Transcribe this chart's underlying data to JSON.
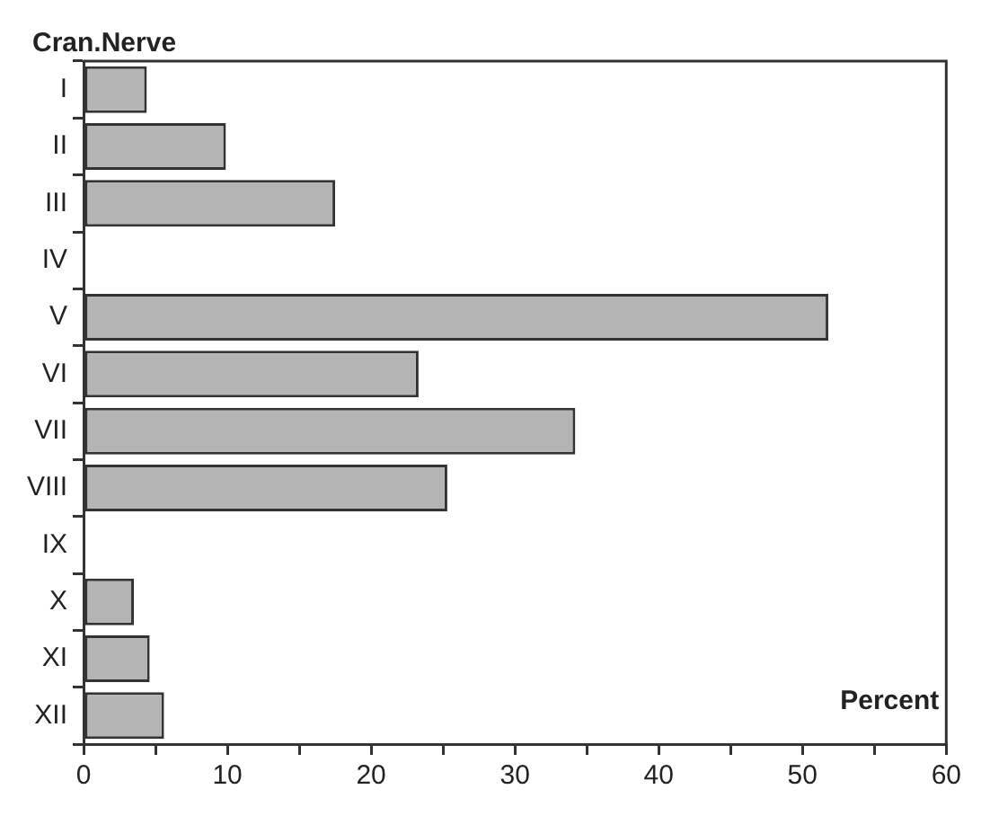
{
  "chart_data": {
    "type": "bar",
    "orientation": "horizontal",
    "ylabel": "Cran.Nerve",
    "xlabel": "Percent",
    "categories": [
      "I",
      "II",
      "III",
      "IV",
      "V",
      "VI",
      "VII",
      "VIII",
      "IX",
      "X",
      "XI",
      "XII"
    ],
    "values": [
      4.4,
      9.9,
      17.5,
      0,
      51.8,
      23.3,
      34.2,
      25.3,
      0,
      3.5,
      4.6,
      5.6
    ],
    "color": "#b4b4b4",
    "xlim": [
      0,
      60
    ],
    "xticks": [
      0,
      {
        "value": 5,
        "label": null
      },
      10,
      {
        "value": 15,
        "label": null
      },
      20,
      {
        "value": 25,
        "label": null
      },
      30,
      {
        "value": 35,
        "label": null
      },
      40,
      {
        "value": 45,
        "label": null
      },
      50,
      {
        "value": 55,
        "label": null
      },
      60
    ],
    "grid": false,
    "legend": false
  }
}
